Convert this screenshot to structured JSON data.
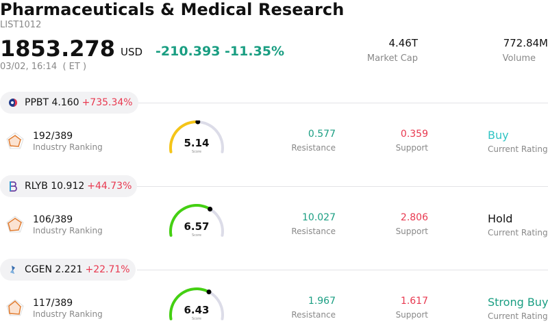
{
  "header": {
    "title": "Pharmaceuticals & Medical Research",
    "code": "LIST1012",
    "price": "1853.278",
    "currency": "USD",
    "change": "-210.393 -11.35%",
    "timestamp": "03/02, 16:14  ( ET )",
    "market_cap_value": "4.46T",
    "market_cap_label": "Market Cap",
    "volume_value": "772.84M",
    "volume_label": "Volume"
  },
  "stocks": [
    {
      "ticker_price": "PPBT 4.160",
      "gain": "+735.34%",
      "rank": "192/389",
      "rank_label": "Industry Ranking",
      "score": "5.14",
      "score_fraction": 0.514,
      "score_label": "Score",
      "gauge_color": "#f5c518",
      "resistance": "0.577",
      "resistance_label": "Resistance",
      "support": "0.359",
      "support_label": "Support",
      "rating": "Buy",
      "rating_color": "#2fc4c4",
      "rating_label": "Current Rating",
      "logo_icon": "ppbt-logo-icon"
    },
    {
      "ticker_price": "RLYB 10.912",
      "gain": "+44.73%",
      "rank": "106/389",
      "rank_label": "Industry Ranking",
      "score": "6.57",
      "score_fraction": 0.657,
      "score_label": "Score",
      "gauge_color": "#44d012",
      "resistance": "10.027",
      "resistance_label": "Resistance",
      "support": "2.806",
      "support_label": "Support",
      "rating": "Hold",
      "rating_color": "#111111",
      "rating_label": "Current Rating",
      "logo_icon": "rlyb-logo-icon"
    },
    {
      "ticker_price": "CGEN 2.221",
      "gain": "+22.71%",
      "rank": "117/389",
      "rank_label": "Industry Ranking",
      "score": "6.43",
      "score_fraction": 0.643,
      "score_label": "Score",
      "gauge_color": "#44d012",
      "resistance": "1.967",
      "resistance_label": "Resistance",
      "support": "1.617",
      "support_label": "Support",
      "rating": "Strong Buy",
      "rating_color": "#1a9e82",
      "rating_label": "Current Rating",
      "logo_icon": "cgen-logo-icon"
    }
  ]
}
